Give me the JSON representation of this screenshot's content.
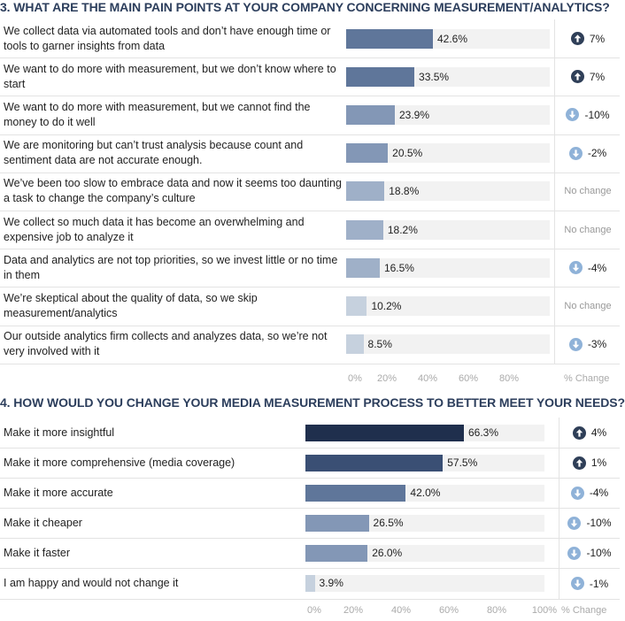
{
  "chart_data": [
    {
      "type": "bar",
      "orientation": "horizontal",
      "title": "3. WHAT ARE THE MAIN PAIN POINTS AT YOUR COMPANY CONCERNING MEASUREMENT/ANALYTICS?",
      "categories": [
        "We collect data via automated tools and don’t have enough time or tools to garner insights from data",
        "We want to do more with measurement, but we don’t know where to start",
        "We want to do more with measurement, but we cannot find the money to do it well",
        "We are monitoring but can’t trust analysis because count and sentiment data are not accurate enough.",
        "We’ve been too slow to embrace data and now it seems too daunting a task to change the company’s culture",
        "We collect so much data it has become an overwhelming and expensive job to analyze it",
        "Data and analytics are not top priorities, so we invest little or no time in them",
        "We’re skeptical about the quality of data, so we skip measurement/analytics",
        "Our outside analytics firm collects and analyzes data, so we’re not very involved with it"
      ],
      "values": [
        42.6,
        33.5,
        23.9,
        20.5,
        18.8,
        18.2,
        16.5,
        10.2,
        8.5
      ],
      "value_labels": [
        "42.6%",
        "33.5%",
        "23.9%",
        "20.5%",
        "18.8%",
        "18.2%",
        "16.5%",
        "10.2%",
        "8.5%"
      ],
      "changes": [
        "7%",
        "7%",
        "-10%",
        "-2%",
        "No change",
        "No change",
        "-4%",
        "No change",
        "-3%"
      ],
      "change_directions": [
        "up",
        "up",
        "down",
        "down",
        "none",
        "none",
        "down",
        "none",
        "down"
      ],
      "xlim": [
        0,
        100
      ],
      "x_ticks": [
        "0%",
        "20%",
        "40%",
        "60%",
        "80%"
      ],
      "change_column_label": "% Change"
    },
    {
      "type": "bar",
      "orientation": "horizontal",
      "title": "4. HOW WOULD YOU CHANGE YOUR MEDIA MEASUREMENT PROCESS TO BETTER MEET YOUR NEEDS?",
      "categories": [
        "Make it more insightful",
        "Make it more comprehensive (media coverage)",
        "Make it more accurate",
        "Make it cheaper",
        "Make it faster",
        "I am happy and would not change it"
      ],
      "values": [
        66.3,
        57.5,
        42.0,
        26.5,
        26.0,
        3.9
      ],
      "value_labels": [
        "66.3%",
        "57.5%",
        "42.0%",
        "26.5%",
        "26.0%",
        "3.9%"
      ],
      "changes": [
        "4%",
        "1%",
        "-4%",
        "-10%",
        "-10%",
        "-1%"
      ],
      "change_directions": [
        "up",
        "up",
        "down",
        "down",
        "down",
        "down"
      ],
      "xlim": [
        0,
        100
      ],
      "x_ticks": [
        "0%",
        "20%",
        "40%",
        "60%",
        "80%",
        "100%"
      ],
      "change_column_label": "% Change"
    }
  ],
  "icons": {
    "up": "arrow-up-circle-icon",
    "down": "arrow-down-circle-icon"
  },
  "colors": {
    "track": "#f2f2f2",
    "up_icon": "#2f3f58",
    "down_icon": "#8fb2d8",
    "bar_scale": [
      "#1f2f4d",
      "#3a4f74",
      "#5f769a",
      "#8397b6",
      "#9fb0c8",
      "#c6d1de"
    ]
  }
}
